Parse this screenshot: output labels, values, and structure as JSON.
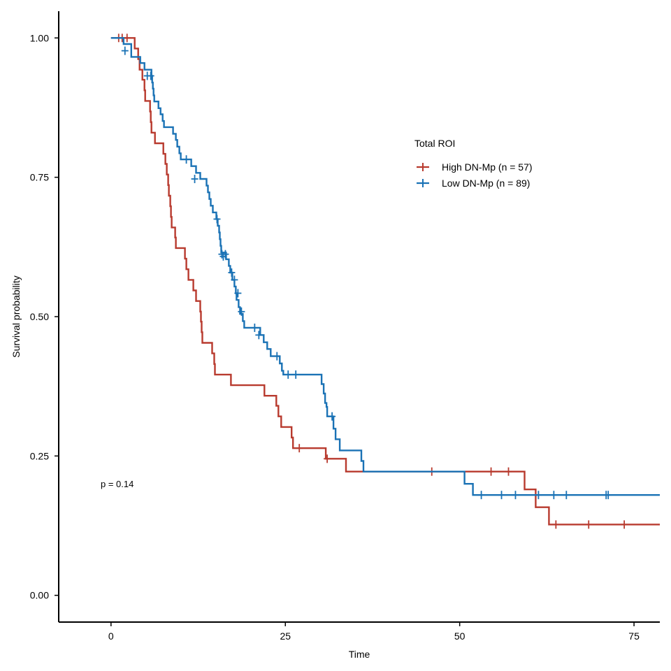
{
  "chart_data": {
    "type": "line",
    "subtype": "kaplan-meier",
    "xlabel": "Time",
    "ylabel": "Survival probability",
    "xlim": [
      -7.5,
      78.7
    ],
    "ylim": [
      -0.048,
      1.048
    ],
    "xticks": [
      0,
      25,
      50,
      75
    ],
    "xtick_labels": [
      "0",
      "25",
      "50",
      "75"
    ],
    "yticks": [
      0,
      0.25,
      0.5,
      0.75,
      1.0
    ],
    "ytick_labels": [
      "0.00",
      "0.25",
      "0.50",
      "0.75",
      "1.00"
    ],
    "grid": false,
    "legend": {
      "title": "Total ROI",
      "position": "right"
    },
    "annotation": "p = 0.14",
    "series": [
      {
        "name": "High DN-Mp (n = 57)",
        "color": "#B83A2E",
        "steps": [
          [
            0,
            1.0
          ],
          [
            3.4,
            0.981
          ],
          [
            3.9,
            0.962
          ],
          [
            4.1,
            0.943
          ],
          [
            4.5,
            0.925
          ],
          [
            4.8,
            0.906
          ],
          [
            4.9,
            0.887
          ],
          [
            5.6,
            0.868
          ],
          [
            5.7,
            0.849
          ],
          [
            5.8,
            0.83
          ],
          [
            6.3,
            0.811
          ],
          [
            7.5,
            0.792
          ],
          [
            7.8,
            0.774
          ],
          [
            8.0,
            0.755
          ],
          [
            8.2,
            0.736
          ],
          [
            8.3,
            0.717
          ],
          [
            8.5,
            0.698
          ],
          [
            8.6,
            0.679
          ],
          [
            8.7,
            0.66
          ],
          [
            9.2,
            0.642
          ],
          [
            9.3,
            0.623
          ],
          [
            10.6,
            0.604
          ],
          [
            10.8,
            0.585
          ],
          [
            11.1,
            0.566
          ],
          [
            11.8,
            0.547
          ],
          [
            12.2,
            0.528
          ],
          [
            12.8,
            0.509
          ],
          [
            12.9,
            0.491
          ],
          [
            13.0,
            0.472
          ],
          [
            13.1,
            0.453
          ],
          [
            14.5,
            0.434
          ],
          [
            14.8,
            0.415
          ],
          [
            14.9,
            0.396
          ],
          [
            17.2,
            0.377
          ],
          [
            22.0,
            0.358
          ],
          [
            23.7,
            0.34
          ],
          [
            24.0,
            0.321
          ],
          [
            24.4,
            0.302
          ],
          [
            25.9,
            0.283
          ],
          [
            26.1,
            0.264
          ],
          [
            30.8,
            0.245
          ],
          [
            33.7,
            0.222
          ],
          [
            59.3,
            0.19
          ],
          [
            60.9,
            0.158
          ],
          [
            62.8,
            0.127
          ]
        ],
        "censored": [
          [
            1.1,
            1.0
          ],
          [
            1.6,
            1.0
          ],
          [
            2.3,
            1.0
          ],
          [
            27.0,
            0.264
          ],
          [
            31.0,
            0.245
          ],
          [
            46.0,
            0.222
          ],
          [
            54.5,
            0.222
          ],
          [
            57.0,
            0.222
          ],
          [
            63.8,
            0.127
          ],
          [
            68.5,
            0.127
          ],
          [
            73.6,
            0.127
          ]
        ]
      },
      {
        "name": "Low DN-Mp (n = 89)",
        "color": "#1A72B5",
        "steps": [
          [
            0,
            1.0
          ],
          [
            1.8,
            0.989
          ],
          [
            2.9,
            0.977
          ],
          [
            2.9,
            0.966
          ],
          [
            4.2,
            0.955
          ],
          [
            4.8,
            0.943
          ],
          [
            5.8,
            0.932
          ],
          [
            5.9,
            0.92
          ],
          [
            6.0,
            0.909
          ],
          [
            6.1,
            0.897
          ],
          [
            6.2,
            0.886
          ],
          [
            6.8,
            0.874
          ],
          [
            7.1,
            0.863
          ],
          [
            7.4,
            0.851
          ],
          [
            7.6,
            0.84
          ],
          [
            8.9,
            0.828
          ],
          [
            9.3,
            0.817
          ],
          [
            9.5,
            0.805
          ],
          [
            9.8,
            0.793
          ],
          [
            10.0,
            0.782
          ],
          [
            11.5,
            0.77
          ],
          [
            12.2,
            0.758
          ],
          [
            12.8,
            0.747
          ],
          [
            13.7,
            0.735
          ],
          [
            13.9,
            0.723
          ],
          [
            14.1,
            0.711
          ],
          [
            14.3,
            0.699
          ],
          [
            14.6,
            0.687
          ],
          [
            15.1,
            0.675
          ],
          [
            15.3,
            0.663
          ],
          [
            15.5,
            0.651
          ],
          [
            15.6,
            0.639
          ],
          [
            15.7,
            0.627
          ],
          [
            15.8,
            0.615
          ],
          [
            16.5,
            0.603
          ],
          [
            16.9,
            0.591
          ],
          [
            17.1,
            0.579
          ],
          [
            17.4,
            0.566
          ],
          [
            17.7,
            0.554
          ],
          [
            17.9,
            0.542
          ],
          [
            18.0,
            0.53
          ],
          [
            18.3,
            0.517
          ],
          [
            18.5,
            0.505
          ],
          [
            18.9,
            0.492
          ],
          [
            19.1,
            0.48
          ],
          [
            21.4,
            0.467
          ],
          [
            21.9,
            0.454
          ],
          [
            22.4,
            0.442
          ],
          [
            22.9,
            0.429
          ],
          [
            24.2,
            0.416
          ],
          [
            24.5,
            0.403
          ],
          [
            24.7,
            0.396
          ],
          [
            30.2,
            0.379
          ],
          [
            30.5,
            0.362
          ],
          [
            30.7,
            0.345
          ],
          [
            30.9,
            0.338
          ],
          [
            31.0,
            0.321
          ],
          [
            31.9,
            0.299
          ],
          [
            32.2,
            0.28
          ],
          [
            32.8,
            0.26
          ],
          [
            35.9,
            0.241
          ],
          [
            36.2,
            0.222
          ],
          [
            50.7,
            0.2
          ],
          [
            51.9,
            0.18
          ]
        ],
        "censored": [
          [
            2.0,
            0.977
          ],
          [
            5.2,
            0.932
          ],
          [
            5.7,
            0.932
          ],
          [
            10.8,
            0.782
          ],
          [
            12.0,
            0.747
          ],
          [
            15.2,
            0.675
          ],
          [
            15.9,
            0.612
          ],
          [
            16.1,
            0.608
          ],
          [
            16.4,
            0.612
          ],
          [
            17.3,
            0.579
          ],
          [
            17.7,
            0.566
          ],
          [
            18.2,
            0.542
          ],
          [
            18.7,
            0.509
          ],
          [
            20.6,
            0.48
          ],
          [
            21.2,
            0.467
          ],
          [
            23.8,
            0.429
          ],
          [
            25.4,
            0.396
          ],
          [
            26.5,
            0.396
          ],
          [
            31.7,
            0.321
          ],
          [
            53.1,
            0.18
          ],
          [
            56.0,
            0.18
          ],
          [
            58.0,
            0.18
          ],
          [
            61.3,
            0.18
          ],
          [
            63.5,
            0.18
          ],
          [
            65.3,
            0.18
          ],
          [
            71.0,
            0.18
          ],
          [
            71.3,
            0.18
          ]
        ]
      }
    ]
  }
}
